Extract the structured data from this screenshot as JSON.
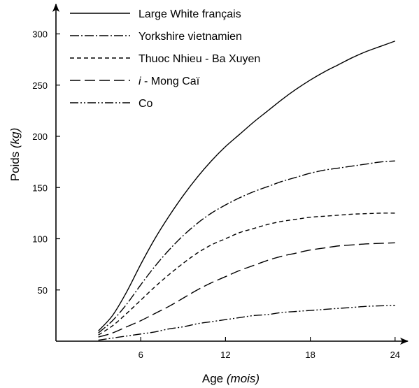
{
  "chart_data": {
    "type": "line",
    "xlabel": "Age",
    "xlabel_unit": "(mois)",
    "ylabel": "Poids",
    "ylabel_unit": "(kg)",
    "xlim": [
      0,
      25
    ],
    "ylim": [
      0,
      310
    ],
    "x_ticks": [
      6,
      12,
      18,
      24
    ],
    "y_ticks": [
      50,
      100,
      150,
      200,
      250,
      300
    ],
    "grid": false,
    "legend_position": "top-left",
    "series": [
      {
        "name": "Large White français",
        "dash": "solid",
        "points": [
          [
            3,
            10
          ],
          [
            4,
            25
          ],
          [
            5,
            48
          ],
          [
            6,
            75
          ],
          [
            7,
            100
          ],
          [
            8,
            122
          ],
          [
            9,
            142
          ],
          [
            10,
            160
          ],
          [
            11,
            176
          ],
          [
            12,
            190
          ],
          [
            13,
            202
          ],
          [
            14,
            214
          ],
          [
            15,
            225
          ],
          [
            16,
            236
          ],
          [
            17,
            246
          ],
          [
            18,
            255
          ],
          [
            19,
            263
          ],
          [
            20,
            270
          ],
          [
            21,
            277
          ],
          [
            22,
            283
          ],
          [
            23,
            288
          ],
          [
            24,
            293
          ]
        ]
      },
      {
        "name": "Yorkshire vietnamien",
        "dash": "dash-dot-long",
        "points": [
          [
            3,
            8
          ],
          [
            4,
            20
          ],
          [
            5,
            36
          ],
          [
            6,
            55
          ],
          [
            7,
            73
          ],
          [
            8,
            89
          ],
          [
            9,
            103
          ],
          [
            10,
            115
          ],
          [
            11,
            125
          ],
          [
            12,
            133
          ],
          [
            13,
            140
          ],
          [
            14,
            146
          ],
          [
            15,
            151
          ],
          [
            16,
            156
          ],
          [
            17,
            160
          ],
          [
            18,
            164
          ],
          [
            19,
            167
          ],
          [
            20,
            169
          ],
          [
            21,
            171
          ],
          [
            22,
            173
          ],
          [
            23,
            175
          ],
          [
            24,
            176
          ]
        ]
      },
      {
        "name": "Thuoc Nhieu - Ba Xuyen",
        "dash": "dashed",
        "points": [
          [
            3,
            6
          ],
          [
            4,
            15
          ],
          [
            5,
            27
          ],
          [
            6,
            40
          ],
          [
            7,
            53
          ],
          [
            8,
            65
          ],
          [
            9,
            76
          ],
          [
            10,
            86
          ],
          [
            11,
            94
          ],
          [
            12,
            100
          ],
          [
            13,
            106
          ],
          [
            14,
            110
          ],
          [
            15,
            114
          ],
          [
            16,
            117
          ],
          [
            17,
            119
          ],
          [
            18,
            121
          ],
          [
            19,
            122
          ],
          [
            20,
            123
          ],
          [
            21,
            124
          ],
          [
            22,
            124.5
          ],
          [
            23,
            125
          ],
          [
            24,
            125
          ]
        ]
      },
      {
        "name": "i - Mong Caï",
        "name_prefix": "i",
        "name_rest": " - Mong Caï",
        "dash": "long-dash",
        "points": [
          [
            3,
            4
          ],
          [
            4,
            8
          ],
          [
            5,
            14
          ],
          [
            6,
            20
          ],
          [
            7,
            27
          ],
          [
            8,
            34
          ],
          [
            9,
            42
          ],
          [
            10,
            50
          ],
          [
            11,
            57
          ],
          [
            12,
            63
          ],
          [
            13,
            69
          ],
          [
            14,
            74
          ],
          [
            15,
            79
          ],
          [
            16,
            83
          ],
          [
            17,
            86
          ],
          [
            18,
            89
          ],
          [
            19,
            91
          ],
          [
            20,
            93
          ],
          [
            21,
            94
          ],
          [
            22,
            95
          ],
          [
            23,
            95.5
          ],
          [
            24,
            96
          ]
        ]
      },
      {
        "name": "Co",
        "dash": "dash-dot-dot",
        "points": [
          [
            3,
            1
          ],
          [
            4,
            3
          ],
          [
            5,
            5
          ],
          [
            6,
            7
          ],
          [
            7,
            9
          ],
          [
            8,
            12
          ],
          [
            9,
            14
          ],
          [
            10,
            17
          ],
          [
            11,
            19
          ],
          [
            12,
            21
          ],
          [
            13,
            23
          ],
          [
            14,
            25
          ],
          [
            15,
            26
          ],
          [
            16,
            28
          ],
          [
            17,
            29
          ],
          [
            18,
            30
          ],
          [
            19,
            31
          ],
          [
            20,
            32
          ],
          [
            21,
            33
          ],
          [
            22,
            34
          ],
          [
            23,
            34.5
          ],
          [
            24,
            35
          ]
        ]
      }
    ]
  }
}
